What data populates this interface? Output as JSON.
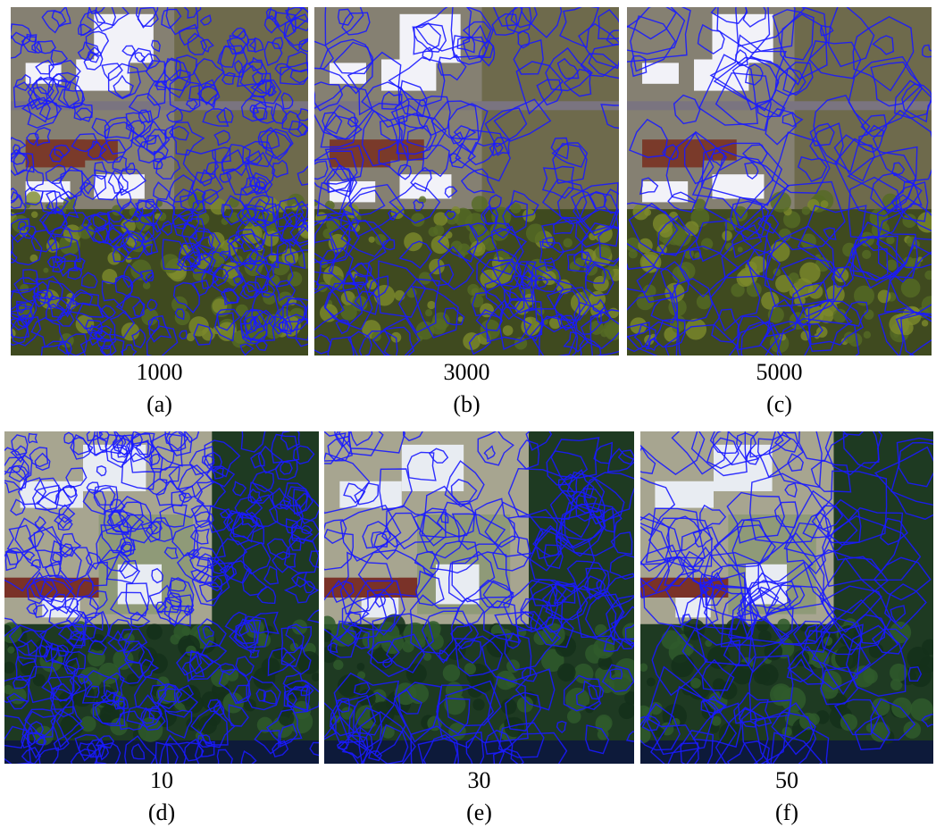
{
  "panels": [
    {
      "caption": "1000",
      "label": "(a)"
    },
    {
      "caption": "3000",
      "label": "(b)"
    },
    {
      "caption": "5000",
      "label": "(c)"
    },
    {
      "caption": "10",
      "label": "(d)"
    },
    {
      "caption": "30",
      "label": "(e)"
    },
    {
      "caption": "50",
      "label": "(f)"
    }
  ]
}
